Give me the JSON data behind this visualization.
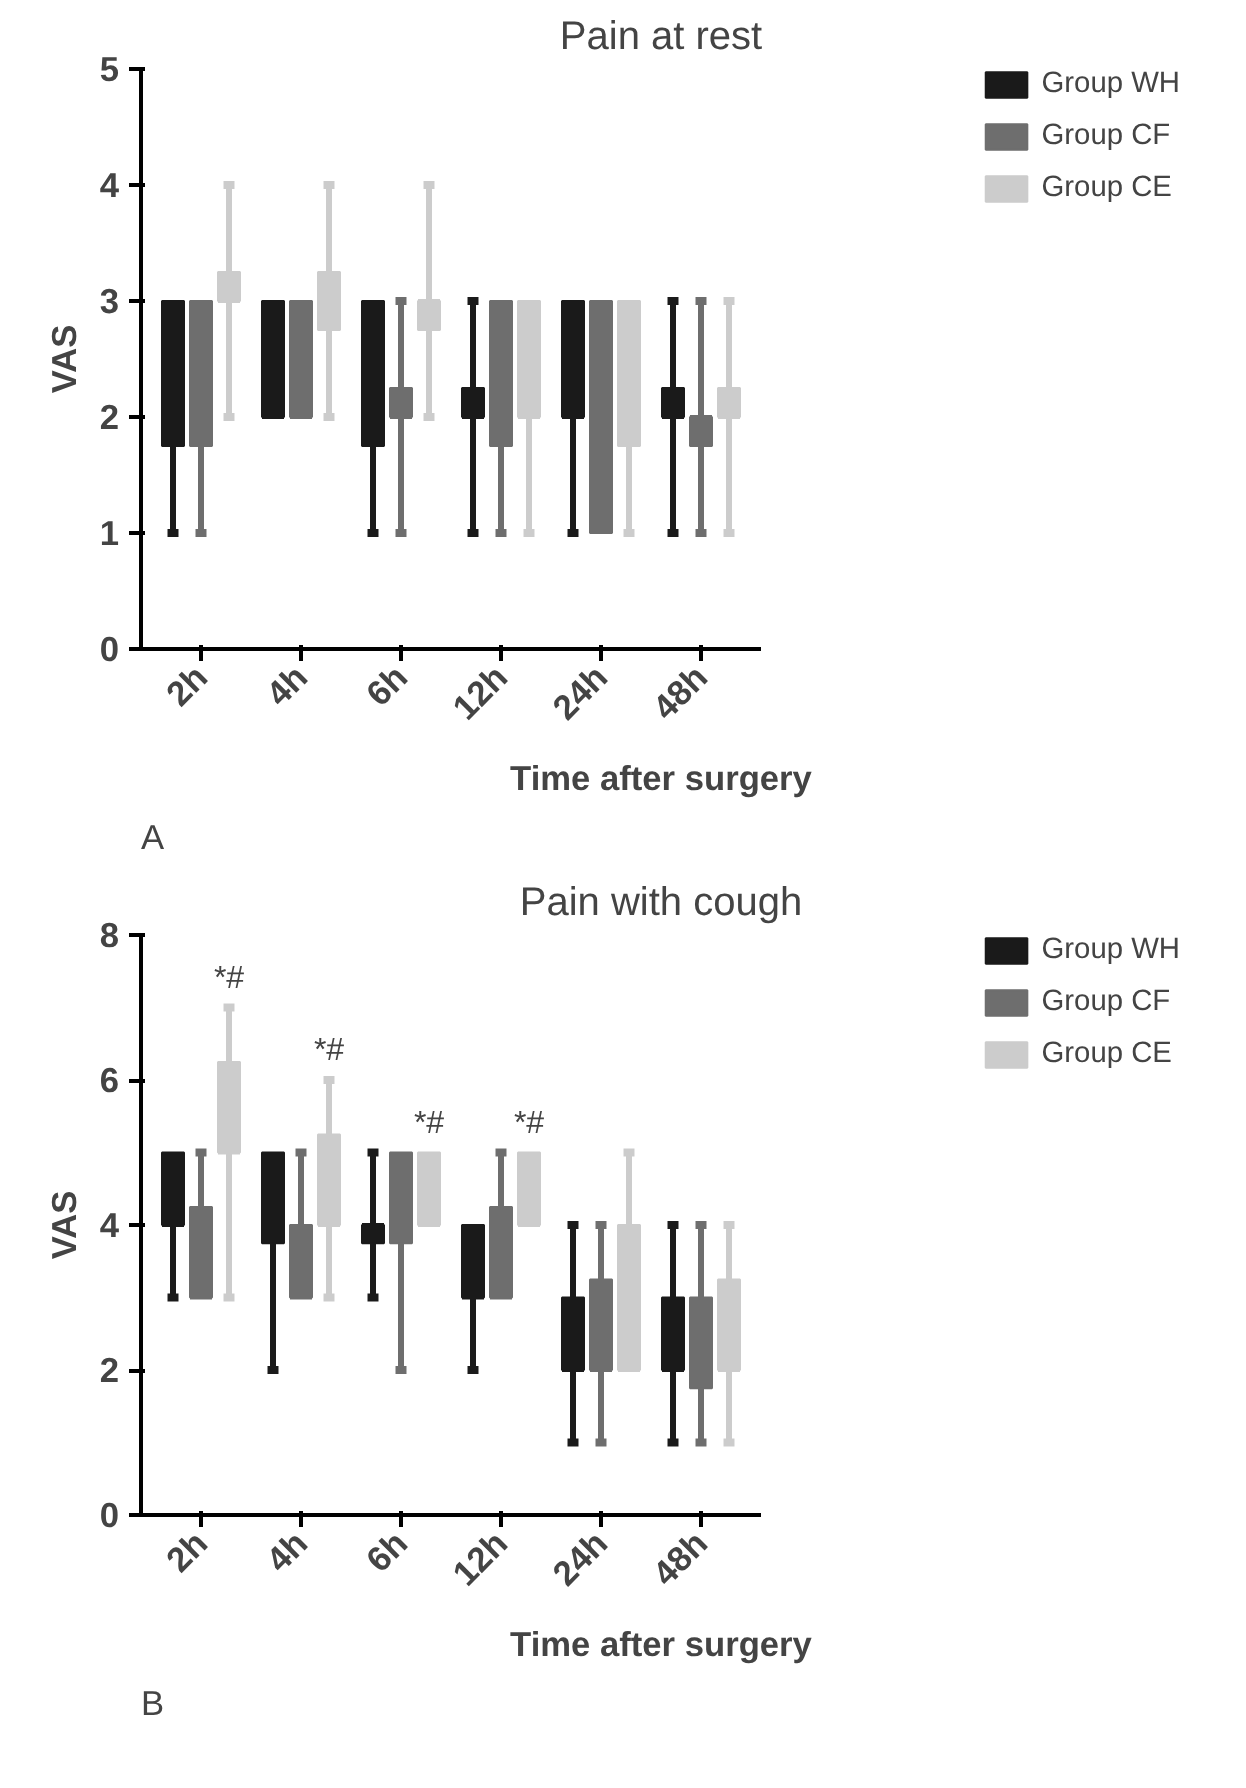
{
  "chart_data": [
    {
      "type": "box",
      "title": "Pain at rest",
      "xlabel": "Time after surgery",
      "ylabel": "VAS",
      "categories": [
        "2h",
        "4h",
        "6h",
        "12h",
        "24h",
        "48h"
      ],
      "ylim": [
        0,
        5
      ],
      "yticks": [
        0,
        1,
        2,
        3,
        4,
        5
      ],
      "grid": false,
      "legend": "top right",
      "annotations": [
        "A"
      ],
      "series": [
        {
          "name": "Group WH",
          "color": "#1a1a1a",
          "boxes": [
            {
              "low": 1,
              "q1": 1.75,
              "median": 2,
              "q3": 3,
              "high": 3
            },
            {
              "low": 2,
              "q1": 2,
              "median": 2,
              "q3": 3,
              "high": 3
            },
            {
              "low": 1,
              "q1": 1.75,
              "median": 2,
              "q3": 3,
              "high": 3
            },
            {
              "low": 1,
              "q1": 2,
              "median": 2,
              "q3": 2.25,
              "high": 3
            },
            {
              "low": 1,
              "q1": 2,
              "median": 2,
              "q3": 3,
              "high": 3
            },
            {
              "low": 1,
              "q1": 2,
              "median": 2,
              "q3": 2.25,
              "high": 3
            }
          ]
        },
        {
          "name": "Group CF",
          "color": "#6e6e6e",
          "boxes": [
            {
              "low": 1,
              "q1": 1.75,
              "median": 2,
              "q3": 3,
              "high": 3
            },
            {
              "low": 2,
              "q1": 2,
              "median": 2,
              "q3": 3,
              "high": 3
            },
            {
              "low": 1,
              "q1": 2,
              "median": 2,
              "q3": 2.25,
              "high": 3
            },
            {
              "low": 1,
              "q1": 1.75,
              "median": 2,
              "q3": 3,
              "high": 3
            },
            {
              "low": 1,
              "q1": 1,
              "median": 2,
              "q3": 3,
              "high": 3
            },
            {
              "low": 1,
              "q1": 1.75,
              "median": 2,
              "q3": 2,
              "high": 3
            }
          ]
        },
        {
          "name": "Group CE",
          "color": "#cccccc",
          "boxes": [
            {
              "low": 2,
              "q1": 3,
              "median": 3,
              "q3": 3.25,
              "high": 4
            },
            {
              "low": 2,
              "q1": 2.75,
              "median": 3,
              "q3": 3.25,
              "high": 4
            },
            {
              "low": 2,
              "q1": 2.75,
              "median": 3,
              "q3": 3,
              "high": 4
            },
            {
              "low": 1,
              "q1": 2,
              "median": 2,
              "q3": 3,
              "high": 3
            },
            {
              "low": 1,
              "q1": 1.75,
              "median": 2,
              "q3": 3,
              "high": 3
            },
            {
              "low": 1,
              "q1": 2,
              "median": 2,
              "q3": 2.25,
              "high": 3
            }
          ]
        }
      ]
    },
    {
      "type": "box",
      "title": "Pain with cough",
      "xlabel": "Time after surgery",
      "ylabel": "VAS",
      "categories": [
        "2h",
        "4h",
        "6h",
        "12h",
        "24h",
        "48h"
      ],
      "ylim": [
        0,
        8
      ],
      "yticks": [
        0,
        2,
        4,
        6,
        8
      ],
      "grid": false,
      "legend": "top right",
      "annotations": [
        "*#",
        "*#",
        "*#",
        "*#",
        "B"
      ],
      "series": [
        {
          "name": "Group WH",
          "color": "#1a1a1a",
          "boxes": [
            {
              "low": 3,
              "q1": 4,
              "median": 4,
              "q3": 5,
              "high": 5
            },
            {
              "low": 2,
              "q1": 3.75,
              "median": 4,
              "q3": 5,
              "high": 5
            },
            {
              "low": 3,
              "q1": 3.75,
              "median": 4,
              "q3": 4,
              "high": 5
            },
            {
              "low": 2,
              "q1": 3,
              "median": 3,
              "q3": 4,
              "high": 4
            },
            {
              "low": 1,
              "q1": 2,
              "median": 2,
              "q3": 3,
              "high": 4
            },
            {
              "low": 1,
              "q1": 2,
              "median": 2,
              "q3": 3,
              "high": 4
            }
          ]
        },
        {
          "name": "Group CF",
          "color": "#6e6e6e",
          "boxes": [
            {
              "low": 3,
              "q1": 3,
              "median": 3,
              "q3": 4.25,
              "high": 5
            },
            {
              "low": 3,
              "q1": 3,
              "median": 3,
              "q3": 4,
              "high": 5
            },
            {
              "low": 2,
              "q1": 3.75,
              "median": 4,
              "q3": 5,
              "high": 5
            },
            {
              "low": 3,
              "q1": 3,
              "median": 3,
              "q3": 4.25,
              "high": 5
            },
            {
              "low": 1,
              "q1": 2,
              "median": 2,
              "q3": 3.25,
              "high": 4
            },
            {
              "low": 1,
              "q1": 1.75,
              "median": 2,
              "q3": 3,
              "high": 4
            }
          ]
        },
        {
          "name": "Group CE",
          "color": "#cccccc",
          "boxes": [
            {
              "low": 3,
              "q1": 5,
              "median": 5,
              "q3": 6.25,
              "high": 7
            },
            {
              "low": 3,
              "q1": 4,
              "median": 4,
              "q3": 5.25,
              "high": 6
            },
            {
              "low": 4,
              "q1": 4,
              "median": 4,
              "q3": 5,
              "high": 5
            },
            {
              "low": 4,
              "q1": 4,
              "median": 4,
              "q3": 5,
              "high": 5
            },
            {
              "low": 2,
              "q1": 2,
              "median": 2,
              "q3": 4,
              "high": 5
            },
            {
              "low": 1,
              "q1": 2,
              "median": 2,
              "q3": 3.25,
              "high": 4
            }
          ]
        }
      ]
    }
  ]
}
